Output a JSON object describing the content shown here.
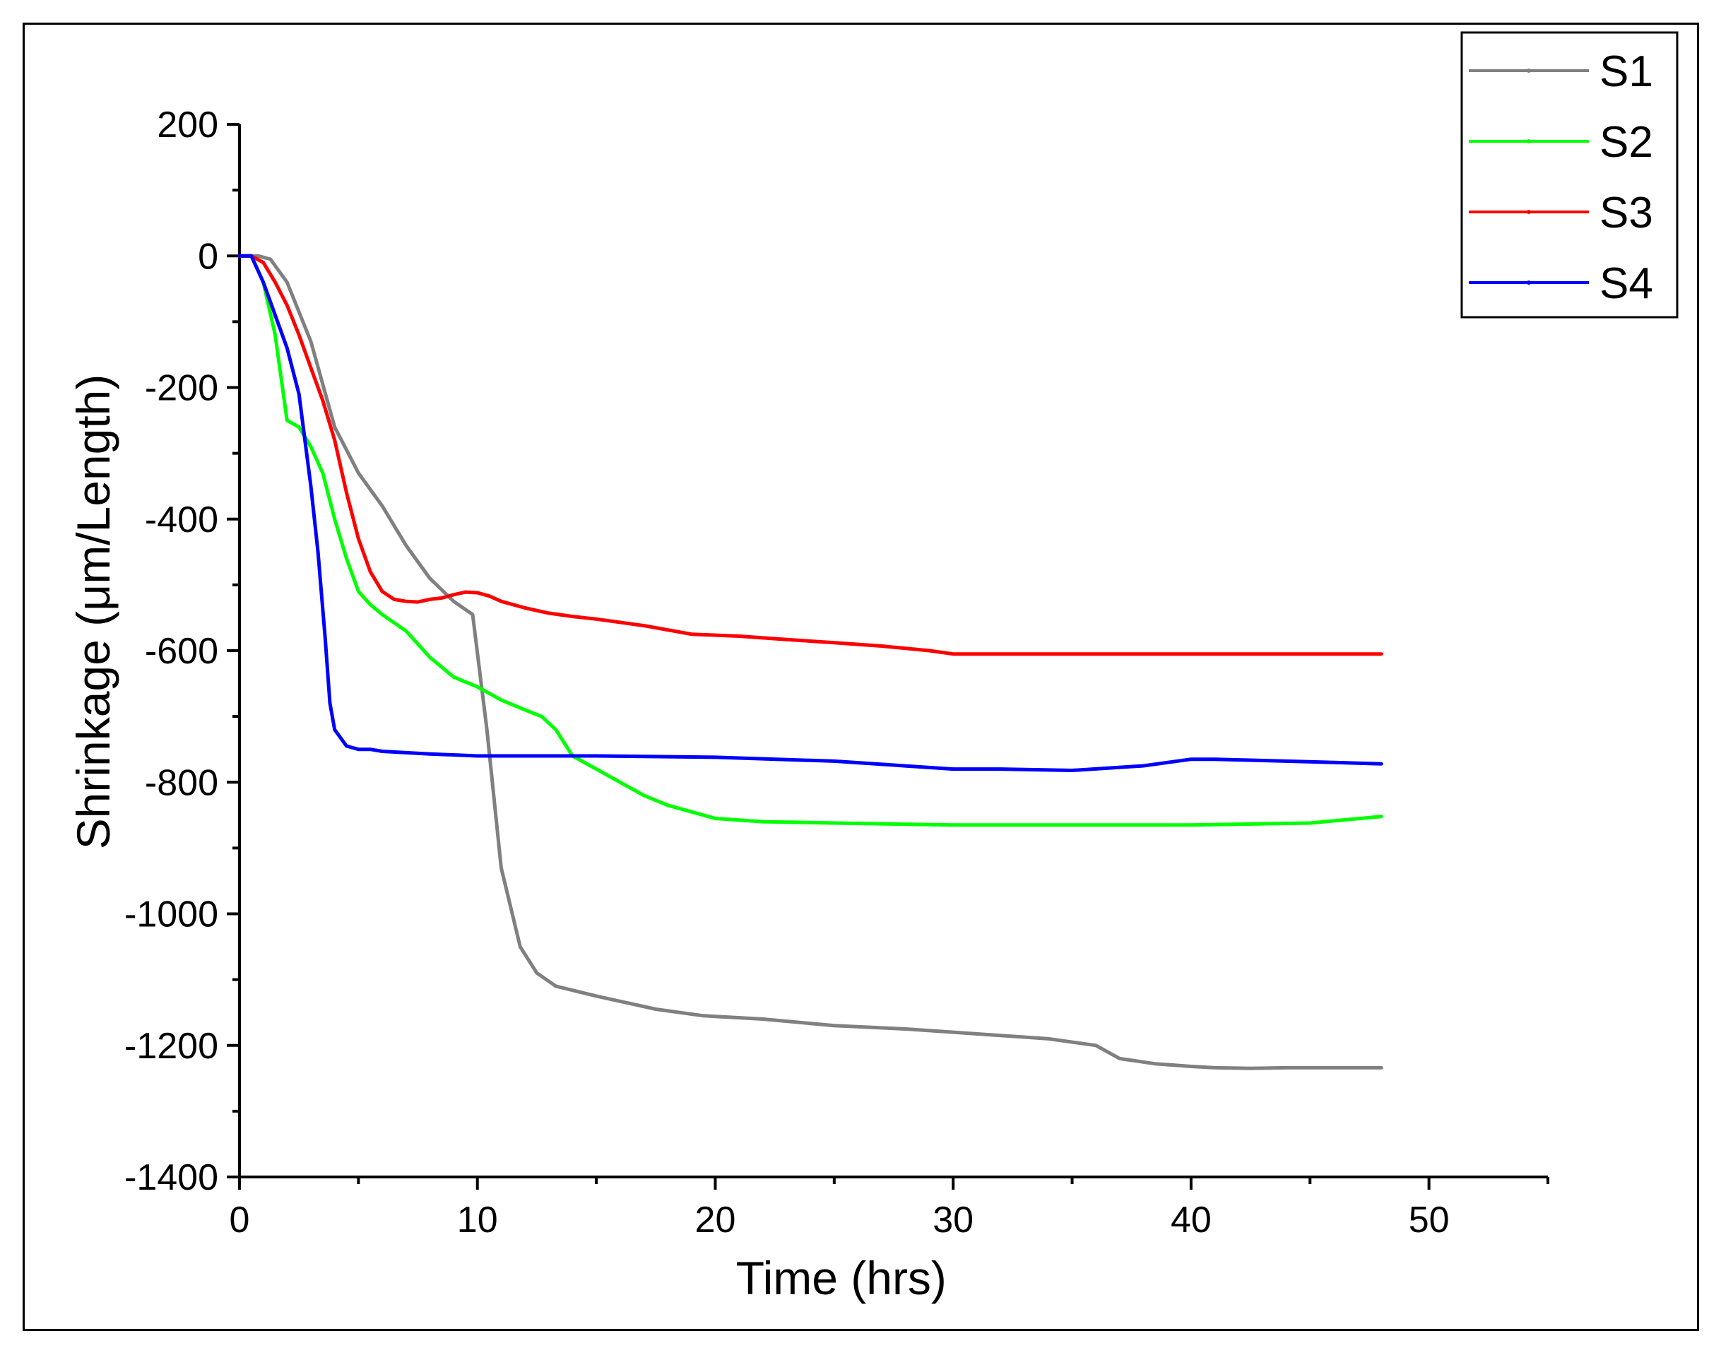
{
  "chart_data": {
    "type": "line",
    "title": "",
    "xlabel": "Time (hrs)",
    "ylabel": "Shrinkage (μm/Length)",
    "xlim": [
      0,
      55
    ],
    "ylim": [
      -1400,
      200
    ],
    "x_major_ticks": [
      0,
      10,
      20,
      30,
      40,
      50
    ],
    "y_major_ticks": [
      200,
      0,
      -200,
      -400,
      -600,
      -800,
      -1000,
      -1200,
      -1400
    ],
    "legend_position": "top-right",
    "grid": false,
    "series": [
      {
        "name": "S1",
        "color": "#808080",
        "x": [
          0,
          0.8,
          1.3,
          2,
          3,
          4,
          5,
          6,
          7,
          8,
          9,
          9.8,
          10.4,
          11,
          11.8,
          12.5,
          13.3,
          15,
          17.5,
          19.5,
          22,
          25,
          28,
          30,
          32,
          34,
          36,
          37,
          38.5,
          40,
          41,
          42.5,
          44,
          46,
          48
        ],
        "y": [
          0,
          0,
          -5,
          -40,
          -130,
          -260,
          -330,
          -380,
          -440,
          -490,
          -525,
          -545,
          -720,
          -930,
          -1050,
          -1090,
          -1110,
          -1125,
          -1145,
          -1155,
          -1160,
          -1170,
          -1175,
          -1180,
          -1185,
          -1190,
          -1200,
          -1220,
          -1228,
          -1232,
          -1234,
          -1235,
          -1234,
          -1234,
          -1234
        ]
      },
      {
        "name": "S2",
        "color": "#00ff00",
        "x": [
          0,
          0.5,
          1,
          1.5,
          2,
          2.5,
          3,
          3.5,
          4,
          4.5,
          5,
          5.5,
          6,
          7,
          8,
          9,
          10,
          11,
          12,
          12.7,
          13.3,
          14,
          15,
          16,
          17,
          18,
          19,
          20,
          22,
          25,
          30,
          35,
          40,
          45,
          48
        ],
        "y": [
          0,
          0,
          -40,
          -120,
          -250,
          -260,
          -290,
          -330,
          -400,
          -460,
          -510,
          -530,
          -545,
          -570,
          -610,
          -640,
          -655,
          -675,
          -690,
          -700,
          -720,
          -760,
          -780,
          -800,
          -820,
          -835,
          -845,
          -855,
          -860,
          -862,
          -865,
          -865,
          -865,
          -862,
          -852
        ]
      },
      {
        "name": "S3",
        "color": "#ff0000",
        "x": [
          0,
          0.5,
          1,
          1.5,
          2,
          2.5,
          3,
          3.5,
          4,
          4.5,
          5,
          5.5,
          6,
          6.5,
          7,
          7.5,
          8,
          8.5,
          9,
          9.5,
          10,
          10.5,
          11,
          12,
          13,
          14,
          15,
          17,
          19,
          21,
          23,
          25,
          27,
          29,
          30,
          35,
          40,
          45,
          48
        ],
        "y": [
          0,
          0,
          -10,
          -40,
          -75,
          -120,
          -170,
          -220,
          -280,
          -360,
          -430,
          -480,
          -510,
          -522,
          -525,
          -526,
          -522,
          -520,
          -515,
          -511,
          -512,
          -517,
          -525,
          -535,
          -543,
          -548,
          -552,
          -562,
          -575,
          -578,
          -583,
          -588,
          -593,
          -600,
          -605,
          -605,
          -605,
          -605,
          -605
        ]
      },
      {
        "name": "S4",
        "color": "#0000ff",
        "x": [
          0,
          0.5,
          1,
          1.5,
          2,
          2.5,
          3,
          3.3,
          3.6,
          3.8,
          4,
          4.5,
          5,
          5.5,
          6,
          8,
          10,
          15,
          20,
          25,
          30,
          32,
          35,
          38,
          40,
          41,
          42,
          44,
          46,
          48
        ],
        "y": [
          0,
          0,
          -40,
          -90,
          -140,
          -210,
          -350,
          -450,
          -580,
          -680,
          -720,
          -745,
          -750,
          -750,
          -753,
          -757,
          -760,
          -760,
          -762,
          -768,
          -780,
          -780,
          -782,
          -775,
          -765,
          -765,
          -766,
          -768,
          -770,
          -772
        ]
      }
    ]
  }
}
